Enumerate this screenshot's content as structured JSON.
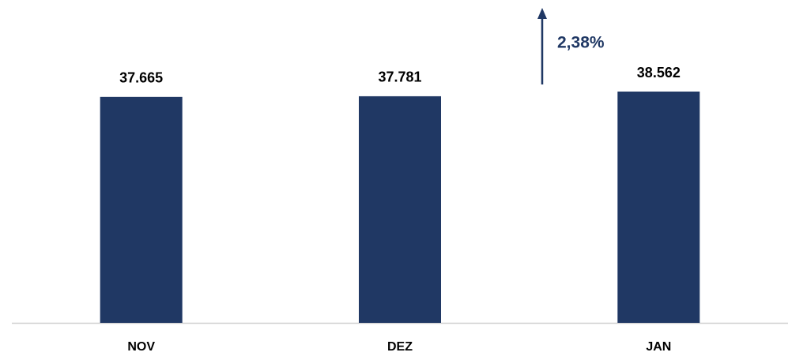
{
  "chart_data": {
    "type": "bar",
    "categories": [
      "NOV",
      "DEZ",
      "JAN"
    ],
    "values": [
      37665,
      37781,
      38562
    ],
    "value_labels": [
      "37.665",
      "37.781",
      "38.562"
    ],
    "color": "#203864",
    "annotation": "2,38%"
  }
}
